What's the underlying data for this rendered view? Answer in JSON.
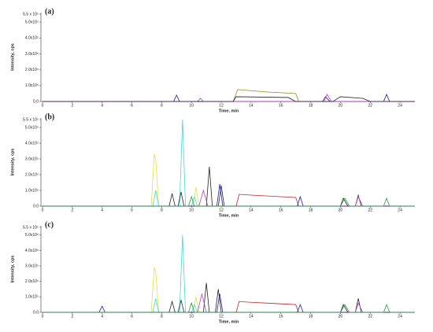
{
  "chart_data": [
    {
      "type": "line",
      "title": "(a)",
      "x_label": "Time, min",
      "y_label": "Intensity, cps",
      "xlim": [
        0,
        25
      ],
      "xticks": [
        0,
        2,
        4,
        6,
        8,
        10,
        12,
        14,
        16,
        18,
        20,
        22,
        24
      ],
      "ylim": [
        0,
        560000
      ],
      "yticks": [
        {
          "value": 0,
          "label": "0.0"
        },
        {
          "value": 100000,
          "label": "1.0x10⁵"
        },
        {
          "value": 200000,
          "label": "2.0x10⁵"
        },
        {
          "value": 300000,
          "label": "3.0x10⁵"
        },
        {
          "value": 400000,
          "label": "4.0x10⁵"
        },
        {
          "value": 500000,
          "label": "5.0x10⁵"
        },
        {
          "value": 550000,
          "label": "5.5 x 10⁵"
        }
      ],
      "series": [
        {
          "color": "#8c8c1e",
          "x": [
            0,
            12.8,
            13.1,
            14,
            15,
            16,
            17,
            17.2,
            25
          ],
          "values": [
            0,
            0,
            75000,
            68000,
            60000,
            55000,
            50000,
            0,
            0
          ]
        },
        {
          "color": "#1a1ab4",
          "x": [
            0,
            8.8,
            9,
            9.2,
            18.8,
            19,
            19.3,
            22.9,
            23.1,
            23.3,
            25
          ],
          "values": [
            0,
            0,
            40000,
            0,
            0,
            30000,
            0,
            0,
            45000,
            0,
            0
          ]
        },
        {
          "color": "#c83cc8",
          "x": [
            0,
            10.4,
            10.6,
            10.8,
            18.9,
            19.1,
            19.4,
            25
          ],
          "values": [
            0,
            0,
            20000,
            0,
            0,
            45000,
            0,
            0
          ]
        },
        {
          "color": "#222222",
          "x": [
            0,
            12.8,
            13,
            16.5,
            17,
            19.5,
            20,
            21.5,
            22,
            25
          ],
          "values": [
            0,
            0,
            30000,
            25000,
            0,
            0,
            30000,
            20000,
            0,
            0
          ]
        }
      ]
    },
    {
      "type": "line",
      "title": "(b)",
      "x_label": "Time, min",
      "y_label": "Intensity, cps",
      "xlim": [
        0,
        25
      ],
      "xticks": [
        0,
        2,
        4,
        6,
        8,
        10,
        12,
        14,
        16,
        18,
        20,
        22,
        24
      ],
      "ylim": [
        0,
        560000
      ],
      "yticks": [
        {
          "value": 0,
          "label": "0.0"
        },
        {
          "value": 100000,
          "label": "1.0x10⁵"
        },
        {
          "value": 200000,
          "label": "2.0x10⁵"
        },
        {
          "value": 300000,
          "label": "3.0x10⁵"
        },
        {
          "value": 400000,
          "label": "4.0x10⁵"
        },
        {
          "value": 500000,
          "label": "5.0x10⁵"
        },
        {
          "value": 550000,
          "label": "5.5 x 10⁵"
        }
      ],
      "series": [
        {
          "color": "#e6e040",
          "x": [
            0,
            7.3,
            7.5,
            7.6,
            7.8,
            10.1,
            10.3,
            10.5,
            25
          ],
          "values": [
            0,
            0,
            330000,
            300000,
            0,
            0,
            120000,
            0,
            0
          ]
        },
        {
          "color": "#40d8e0",
          "x": [
            0,
            7.4,
            7.6,
            7.8,
            9.2,
            9.4,
            9.6,
            10,
            10.2,
            10.4,
            25
          ],
          "values": [
            0,
            0,
            100000,
            0,
            0,
            550000,
            0,
            0,
            60000,
            0,
            0
          ]
        },
        {
          "color": "#222222",
          "x": [
            0,
            8.5,
            8.7,
            8.9,
            9.1,
            9.3,
            9.5,
            11,
            11.2,
            11.4,
            11.8,
            12,
            12.2,
            20,
            20.2,
            20.5,
            21,
            21.2,
            21.4,
            25
          ],
          "values": [
            0,
            0,
            80000,
            0,
            0,
            90000,
            0,
            0,
            250000,
            0,
            0,
            130000,
            0,
            0,
            50000,
            0,
            0,
            70000,
            0,
            0
          ]
        },
        {
          "color": "#c83cc8",
          "x": [
            0,
            10.5,
            10.8,
            11.1,
            21,
            21.2,
            21.5,
            25
          ],
          "values": [
            0,
            0,
            100000,
            0,
            0,
            60000,
            0,
            0
          ]
        },
        {
          "color": "#d02020",
          "x": [
            0,
            13,
            13.2,
            14,
            15,
            16,
            17,
            17.2,
            25
          ],
          "values": [
            0,
            0,
            75000,
            70000,
            65000,
            60000,
            55000,
            0,
            0
          ]
        },
        {
          "color": "#1a1ab4",
          "x": [
            0,
            11.7,
            11.9,
            12.1,
            17.1,
            17.3,
            17.5,
            25
          ],
          "values": [
            0,
            0,
            140000,
            0,
            0,
            60000,
            0,
            0
          ]
        },
        {
          "color": "#20a030",
          "x": [
            0,
            9.8,
            10,
            10.2,
            20,
            20.3,
            20.6,
            22.9,
            23.1,
            23.3,
            25
          ],
          "values": [
            0,
            0,
            60000,
            0,
            0,
            50000,
            0,
            0,
            50000,
            0,
            0
          ]
        }
      ]
    },
    {
      "type": "line",
      "title": "(c)",
      "x_label": "Time, min",
      "y_label": "Intensity, cps",
      "xlim": [
        0,
        25
      ],
      "xticks": [
        0,
        2,
        4,
        6,
        8,
        10,
        12,
        14,
        16,
        18,
        20,
        22,
        24
      ],
      "ylim": [
        0,
        560000
      ],
      "yticks": [
        {
          "value": 0,
          "label": "0.0"
        },
        {
          "value": 100000,
          "label": "1.0x10⁵"
        },
        {
          "value": 200000,
          "label": "2.0x10⁵"
        },
        {
          "value": 300000,
          "label": "3.0x10⁵"
        },
        {
          "value": 400000,
          "label": "4.0x10⁵"
        },
        {
          "value": 500000,
          "label": "5.0x10⁵"
        },
        {
          "value": 550000,
          "label": "5.5 x 10⁵"
        }
      ],
      "series": [
        {
          "color": "#e6e040",
          "x": [
            0,
            7.3,
            7.5,
            7.6,
            7.8,
            10.1,
            10.3,
            10.5,
            25
          ],
          "values": [
            0,
            0,
            290000,
            260000,
            0,
            0,
            100000,
            0,
            0
          ]
        },
        {
          "color": "#40d8e0",
          "x": [
            0,
            7.4,
            7.6,
            7.8,
            9.2,
            9.4,
            9.6,
            10,
            10.2,
            10.4,
            25
          ],
          "values": [
            0,
            0,
            90000,
            0,
            0,
            500000,
            0,
            0,
            50000,
            0,
            0
          ]
        },
        {
          "color": "#222222",
          "x": [
            0,
            8.5,
            8.7,
            8.9,
            9.1,
            9.3,
            9.5,
            10.8,
            11,
            11.2,
            11.6,
            11.8,
            12,
            20,
            20.2,
            20.5,
            21,
            21.2,
            21.4,
            25
          ],
          "values": [
            0,
            0,
            70000,
            0,
            0,
            80000,
            0,
            0,
            190000,
            0,
            0,
            150000,
            0,
            0,
            50000,
            0,
            0,
            90000,
            0,
            0
          ]
        },
        {
          "color": "#c83cc8",
          "x": [
            0,
            10.4,
            10.7,
            11,
            21,
            21.2,
            21.5,
            25
          ],
          "values": [
            0,
            0,
            120000,
            0,
            0,
            60000,
            0,
            0
          ]
        },
        {
          "color": "#d02020",
          "x": [
            0,
            13,
            13.2,
            14,
            15,
            16,
            17,
            17.2,
            25
          ],
          "values": [
            0,
            0,
            70000,
            65000,
            60000,
            55000,
            50000,
            0,
            0
          ]
        },
        {
          "color": "#1a1ab4",
          "x": [
            0,
            3.8,
            4,
            4.2,
            11.7,
            11.9,
            12.1,
            17.1,
            17.3,
            17.5,
            25
          ],
          "values": [
            0,
            0,
            40000,
            0,
            0,
            120000,
            0,
            0,
            50000,
            0,
            0
          ]
        },
        {
          "color": "#20a030",
          "x": [
            0,
            9.8,
            10,
            10.2,
            20,
            20.3,
            20.6,
            22.9,
            23.1,
            23.3,
            25
          ],
          "values": [
            0,
            0,
            60000,
            0,
            0,
            50000,
            0,
            0,
            50000,
            0,
            0
          ]
        }
      ]
    }
  ]
}
